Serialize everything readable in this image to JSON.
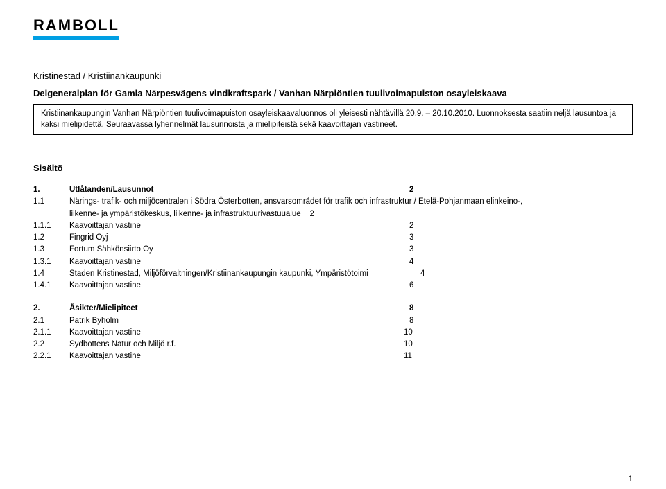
{
  "logo": {
    "text": "RAMBOLL"
  },
  "heading": "Kristinestad / Kristiinankaupunki",
  "title": "Delgeneralplan för Gamla Närpesvägens vindkraftspark / Vanhan Närpiöntien tuulivoimapuiston osayleiskaava",
  "summary": "Kristiinankaupungin Vanhan Närpiöntien tuulivoimapuiston osayleiskaavaluonnos oli yleisesti nähtävillä 20.9. – 20.10.2010. Luonnoksesta saatiin neljä lausuntoa ja kaksi mielipidettä. Seuraavassa lyhennelmät lausunnoista ja mielipiteistä sekä kaavoittajan vastineet.",
  "contents_title": "Sisältö",
  "toc": [
    {
      "num": "1.",
      "label": "Utlåtanden/Lausunnot",
      "page": "2",
      "bold": true,
      "label_width": 490
    },
    {
      "num": "1.1",
      "label": "Närings- trafik- och miljöcentralen i Södra Österbotten, ansvarsområdet för trafik och infrastruktur / Etelä-Pohjanmaan elinkeino-, liikenne- ja ympäristökeskus, liikenne- ja infrastruktuurivastuualue",
      "page": "2",
      "bold": false,
      "wrap": true,
      "label_width": 820
    },
    {
      "num": "1.1.1",
      "label": "Kaavoittajan vastine",
      "page": "2",
      "bold": false,
      "label_width": 490
    },
    {
      "num": "1.2",
      "label": "Fingrid Oyj",
      "page": "3",
      "bold": false,
      "label_width": 490
    },
    {
      "num": "1.3",
      "label": "Fortum Sähkönsiirto Oy",
      "page": "3",
      "bold": false,
      "label_width": 490
    },
    {
      "num": "1.3.1",
      "label": "Kaavoittajan vastine",
      "page": "4",
      "bold": false,
      "label_width": 490
    },
    {
      "num": "1.4",
      "label": "Staden Kristinestad, Miljöförvaltningen/Kristiinankaupungin kaupunki, Ympäristötoimi",
      "page": "4",
      "bold": false,
      "label_width": 506
    },
    {
      "num": "1.4.1",
      "label": "Kaavoittajan vastine",
      "page": "6",
      "bold": false,
      "label_width": 490
    },
    {
      "gap": true
    },
    {
      "num": "2.",
      "label": "Åsikter/Mielipiteet",
      "page": "8",
      "bold": true,
      "label_width": 490
    },
    {
      "num": "2.1",
      "label": "Patrik Byholm",
      "page": "8",
      "bold": false,
      "label_width": 490
    },
    {
      "num": "2.1.1",
      "label": "Kaavoittajan vastine",
      "page": "10",
      "bold": false,
      "label_width": 482
    },
    {
      "num": "2.2",
      "label": "Sydbottens Natur och Miljö r.f.",
      "page": "10",
      "bold": false,
      "label_width": 482
    },
    {
      "num": "2.2.1",
      "label": "Kaavoittajan vastine",
      "page": "11",
      "bold": false,
      "label_width": 482
    }
  ],
  "footer_page": "1"
}
